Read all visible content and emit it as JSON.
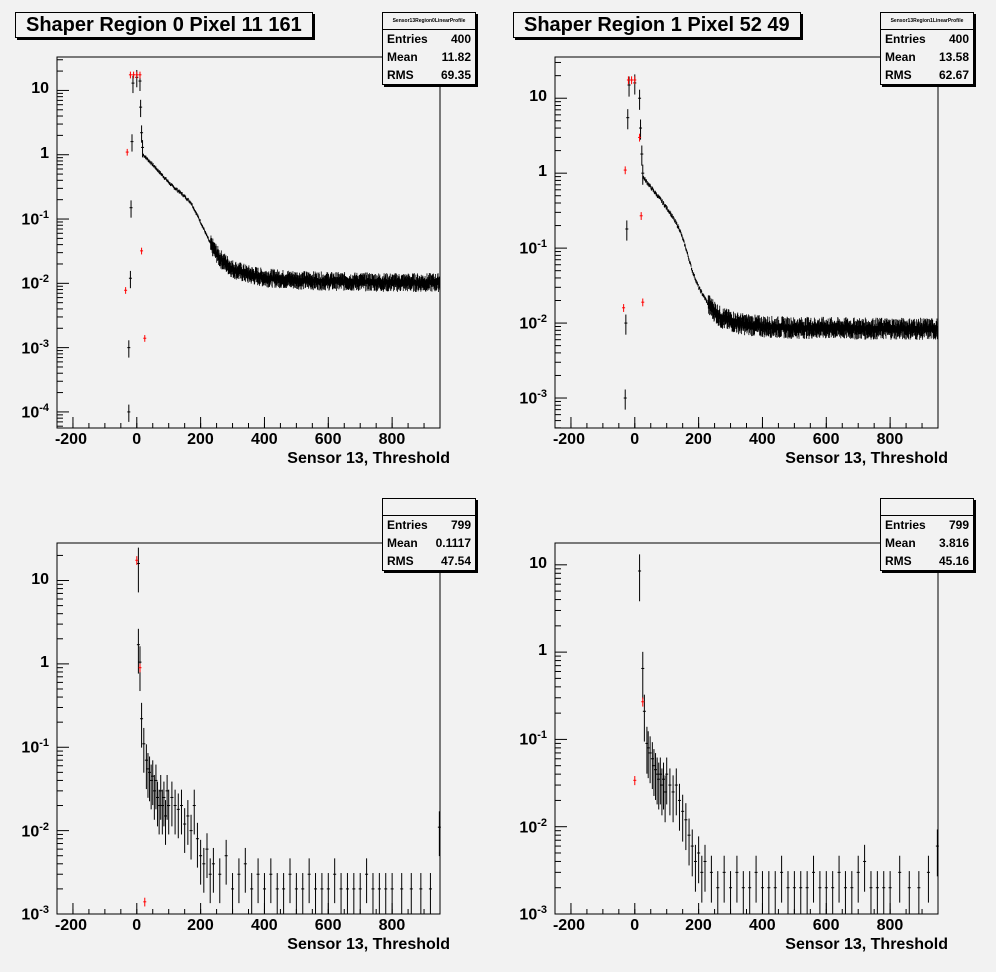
{
  "chart_data": [
    {
      "type": "scatter",
      "title": "Shaper Region 0 Pixel 11 161",
      "xlabel": "Sensor 13, Threshold",
      "ylabel": "",
      "xlim": [
        -250,
        950
      ],
      "ylim_log10": [
        -4.25,
        1.52
      ],
      "yscale": "log",
      "xticks": [
        "-200",
        "0",
        "200",
        "400",
        "600",
        "800"
      ],
      "yticks": [
        {
          "label": "10",
          "exp": "",
          "v": 1
        },
        {
          "label": "1",
          "exp": "",
          "v": 0
        },
        {
          "label": "10",
          "exp": "-1",
          "v": -1
        },
        {
          "label": "10",
          "exp": "-2",
          "v": -2
        },
        {
          "label": "10",
          "exp": "-3",
          "v": -3
        },
        {
          "label": "10",
          "exp": "-4",
          "v": -4
        }
      ],
      "stats": {
        "name": "Sensor13Region0LinearProfile",
        "entries_label": "Entries",
        "entries": "400",
        "mean_label": "Mean",
        "mean": "11.82",
        "rms_label": "RMS",
        "rms": "69.35"
      },
      "black_series": [
        [
          -25,
          0.001
        ],
        [
          -25,
          0.0001
        ],
        [
          -20,
          0.012
        ],
        [
          -18,
          0.15
        ],
        [
          -15,
          1.6
        ],
        [
          -12,
          13.0
        ],
        [
          0,
          16.0
        ],
        [
          10,
          14.0
        ],
        [
          12,
          5.5
        ],
        [
          15,
          2.2
        ],
        [
          18,
          1.3
        ]
      ],
      "black_curve": [
        [
          20,
          1.0
        ],
        [
          50,
          0.7
        ],
        [
          80,
          0.48
        ],
        [
          110,
          0.33
        ],
        [
          140,
          0.25
        ],
        [
          170,
          0.18
        ],
        [
          200,
          0.09
        ],
        [
          230,
          0.042
        ],
        [
          260,
          0.025
        ],
        [
          300,
          0.017
        ],
        [
          350,
          0.014
        ],
        [
          400,
          0.0125
        ],
        [
          500,
          0.0115
        ],
        [
          600,
          0.011
        ],
        [
          700,
          0.0108
        ],
        [
          800,
          0.0105
        ],
        [
          950,
          0.0105
        ]
      ],
      "black_noise": 0.12,
      "red_series": [
        [
          -35,
          0.0078
        ],
        [
          -30,
          1.1
        ],
        [
          -20,
          17.5
        ],
        [
          -10,
          17.5
        ],
        [
          0,
          17.5
        ],
        [
          10,
          17.5
        ],
        [
          15,
          0.032
        ],
        [
          25,
          0.0014
        ]
      ],
      "colors": {
        "black": "#000000",
        "red": "#ff0000"
      }
    },
    {
      "type": "scatter",
      "title": "Shaper Region 1 Pixel 52 49",
      "xlabel": "Sensor 13, Threshold",
      "ylabel": "",
      "xlim": [
        -250,
        950
      ],
      "ylim_log10": [
        -3.4,
        1.55
      ],
      "yscale": "log",
      "xticks": [
        "-200",
        "0",
        "200",
        "400",
        "600",
        "800"
      ],
      "yticks": [
        {
          "label": "10",
          "exp": "",
          "v": 1
        },
        {
          "label": "1",
          "exp": "",
          "v": 0
        },
        {
          "label": "10",
          "exp": "-1",
          "v": -1
        },
        {
          "label": "10",
          "exp": "-2",
          "v": -2
        },
        {
          "label": "10",
          "exp": "-3",
          "v": -3
        }
      ],
      "stats": {
        "name": "Sensor13Region1LinearProfile",
        "entries_label": "Entries",
        "entries": "400",
        "mean_label": "Mean",
        "mean": "13.58",
        "rms_label": "RMS",
        "rms": "62.67"
      },
      "black_series": [
        [
          -30,
          0.001
        ],
        [
          -28,
          0.01
        ],
        [
          -25,
          0.18
        ],
        [
          -22,
          5.5
        ],
        [
          -18,
          15.0
        ],
        [
          0,
          16.0
        ],
        [
          15,
          10.0
        ],
        [
          18,
          4.0
        ],
        [
          22,
          1.8
        ],
        [
          25,
          1.0
        ]
      ],
      "black_curve": [
        [
          25,
          0.9
        ],
        [
          50,
          0.65
        ],
        [
          80,
          0.45
        ],
        [
          110,
          0.3
        ],
        [
          140,
          0.18
        ],
        [
          160,
          0.1
        ],
        [
          180,
          0.05
        ],
        [
          200,
          0.03
        ],
        [
          230,
          0.018
        ],
        [
          270,
          0.012
        ],
        [
          330,
          0.01
        ],
        [
          400,
          0.0092
        ],
        [
          500,
          0.0088
        ],
        [
          600,
          0.0088
        ],
        [
          700,
          0.0086
        ],
        [
          800,
          0.0086
        ],
        [
          950,
          0.0085
        ]
      ],
      "black_noise": 0.12,
      "red_series": [
        [
          -35,
          0.016
        ],
        [
          -30,
          1.1
        ],
        [
          -20,
          17.5
        ],
        [
          -10,
          17.5
        ],
        [
          0,
          17.5
        ],
        [
          15,
          3.0
        ],
        [
          20,
          0.27
        ],
        [
          25,
          0.019
        ]
      ],
      "colors": {
        "black": "#000000",
        "red": "#ff0000"
      }
    },
    {
      "type": "scatter",
      "title": "",
      "xlabel": "Sensor 13, Threshold",
      "ylabel": "",
      "xlim": [
        -250,
        950
      ],
      "ylim_log10": [
        -3.0,
        1.45
      ],
      "yscale": "log",
      "xticks": [
        "-200",
        "0",
        "200",
        "400",
        "600",
        "800"
      ],
      "yticks": [
        {
          "label": "10",
          "exp": "",
          "v": 1
        },
        {
          "label": "1",
          "exp": "",
          "v": 0
        },
        {
          "label": "10",
          "exp": "-1",
          "v": -1
        },
        {
          "label": "10",
          "exp": "-2",
          "v": -2
        },
        {
          "label": "10",
          "exp": "-3",
          "v": -3
        }
      ],
      "stats": {
        "name": "",
        "entries_label": "Entries",
        "entries": "799",
        "mean_label": "Mean",
        "mean": "0.1117",
        "rms_label": "RMS",
        "rms": "47.54"
      },
      "black_series": [
        [
          5,
          16.0
        ],
        [
          5,
          1.7
        ],
        [
          10,
          1.05
        ],
        [
          15,
          0.22
        ],
        [
          22,
          0.11
        ],
        [
          30,
          0.07
        ],
        [
          35,
          0.055
        ],
        [
          40,
          0.05
        ],
        [
          45,
          0.04
        ],
        [
          50,
          0.045
        ],
        [
          55,
          0.03
        ],
        [
          60,
          0.04
        ],
        [
          65,
          0.025
        ],
        [
          70,
          0.02
        ],
        [
          75,
          0.03
        ],
        [
          80,
          0.02
        ],
        [
          85,
          0.025
        ],
        [
          90,
          0.015
        ],
        [
          95,
          0.03
        ],
        [
          100,
          0.02
        ],
        [
          110,
          0.025
        ],
        [
          120,
          0.02
        ],
        [
          130,
          0.018
        ],
        [
          140,
          0.02
        ],
        [
          150,
          0.012
        ],
        [
          160,
          0.015
        ],
        [
          170,
          0.01
        ],
        [
          180,
          0.02
        ],
        [
          190,
          0.008
        ],
        [
          200,
          0.005
        ],
        [
          210,
          0.004
        ],
        [
          220,
          0.006
        ],
        [
          230,
          0.003
        ],
        [
          240,
          0.004
        ],
        [
          260,
          0.003
        ],
        [
          280,
          0.005
        ],
        [
          300,
          0.002
        ],
        [
          320,
          0.003
        ],
        [
          340,
          0.004
        ],
        [
          360,
          0.002
        ],
        [
          380,
          0.003
        ],
        [
          400,
          0.002
        ],
        [
          420,
          0.003
        ],
        [
          440,
          0.002
        ],
        [
          460,
          0.002
        ],
        [
          480,
          0.003
        ],
        [
          500,
          0.002
        ],
        [
          520,
          0.002
        ],
        [
          540,
          0.003
        ],
        [
          560,
          0.002
        ],
        [
          580,
          0.002
        ],
        [
          600,
          0.002
        ],
        [
          620,
          0.003
        ],
        [
          640,
          0.002
        ],
        [
          660,
          0.002
        ],
        [
          680,
          0.002
        ],
        [
          700,
          0.002
        ],
        [
          720,
          0.003
        ],
        [
          740,
          0.002
        ],
        [
          760,
          0.002
        ],
        [
          780,
          0.002
        ],
        [
          800,
          0.002
        ],
        [
          830,
          0.002
        ],
        [
          860,
          0.002
        ],
        [
          890,
          0.002
        ],
        [
          920,
          0.002
        ],
        [
          948,
          0.011
        ]
      ],
      "red_series": [
        [
          0,
          17.5
        ],
        [
          10,
          0.9
        ],
        [
          25,
          0.0014
        ]
      ],
      "colors": {
        "black": "#000000",
        "red": "#ff0000"
      }
    },
    {
      "type": "scatter",
      "title": "",
      "xlabel": "Sensor 13, Threshold",
      "ylabel": "",
      "xlim": [
        -250,
        950
      ],
      "ylim_log10": [
        -3.0,
        1.25
      ],
      "yscale": "log",
      "xticks": [
        "-200",
        "0",
        "200",
        "400",
        "600",
        "800"
      ],
      "yticks": [
        {
          "label": "10",
          "exp": "",
          "v": 1
        },
        {
          "label": "1",
          "exp": "",
          "v": 0
        },
        {
          "label": "10",
          "exp": "-1",
          "v": -1
        },
        {
          "label": "10",
          "exp": "-2",
          "v": -2
        },
        {
          "label": "10",
          "exp": "-3",
          "v": -3
        }
      ],
      "stats": {
        "name": "",
        "entries_label": "Entries",
        "entries": "799",
        "mean_label": "Mean",
        "mean": "3.816",
        "rms_label": "RMS",
        "rms": "45.16"
      },
      "black_series": [
        [
          15,
          8.5
        ],
        [
          25,
          0.65
        ],
        [
          30,
          0.21
        ],
        [
          38,
          0.09
        ],
        [
          42,
          0.08
        ],
        [
          48,
          0.07
        ],
        [
          55,
          0.06
        ],
        [
          60,
          0.05
        ],
        [
          65,
          0.045
        ],
        [
          70,
          0.04
        ],
        [
          75,
          0.035
        ],
        [
          80,
          0.04
        ],
        [
          85,
          0.03
        ],
        [
          90,
          0.035
        ],
        [
          95,
          0.025
        ],
        [
          100,
          0.04
        ],
        [
          110,
          0.03
        ],
        [
          120,
          0.025
        ],
        [
          130,
          0.03
        ],
        [
          140,
          0.02
        ],
        [
          150,
          0.015
        ],
        [
          160,
          0.012
        ],
        [
          170,
          0.008
        ],
        [
          180,
          0.006
        ],
        [
          190,
          0.004
        ],
        [
          200,
          0.005
        ],
        [
          210,
          0.003
        ],
        [
          220,
          0.004
        ],
        [
          240,
          0.003
        ],
        [
          260,
          0.002
        ],
        [
          280,
          0.003
        ],
        [
          300,
          0.002
        ],
        [
          320,
          0.003
        ],
        [
          340,
          0.002
        ],
        [
          360,
          0.002
        ],
        [
          380,
          0.003
        ],
        [
          400,
          0.002
        ],
        [
          420,
          0.002
        ],
        [
          440,
          0.002
        ],
        [
          460,
          0.003
        ],
        [
          480,
          0.002
        ],
        [
          500,
          0.002
        ],
        [
          520,
          0.002
        ],
        [
          540,
          0.002
        ],
        [
          560,
          0.003
        ],
        [
          580,
          0.002
        ],
        [
          600,
          0.002
        ],
        [
          620,
          0.002
        ],
        [
          640,
          0.003
        ],
        [
          660,
          0.002
        ],
        [
          680,
          0.002
        ],
        [
          700,
          0.003
        ],
        [
          720,
          0.004
        ],
        [
          740,
          0.002
        ],
        [
          760,
          0.002
        ],
        [
          780,
          0.002
        ],
        [
          800,
          0.002
        ],
        [
          830,
          0.003
        ],
        [
          860,
          0.002
        ],
        [
          890,
          0.002
        ],
        [
          920,
          0.003
        ],
        [
          948,
          0.006
        ]
      ],
      "red_series": [
        [
          0,
          0.034
        ],
        [
          25,
          0.27
        ]
      ],
      "colors": {
        "black": "#000000",
        "red": "#ff0000"
      }
    }
  ]
}
